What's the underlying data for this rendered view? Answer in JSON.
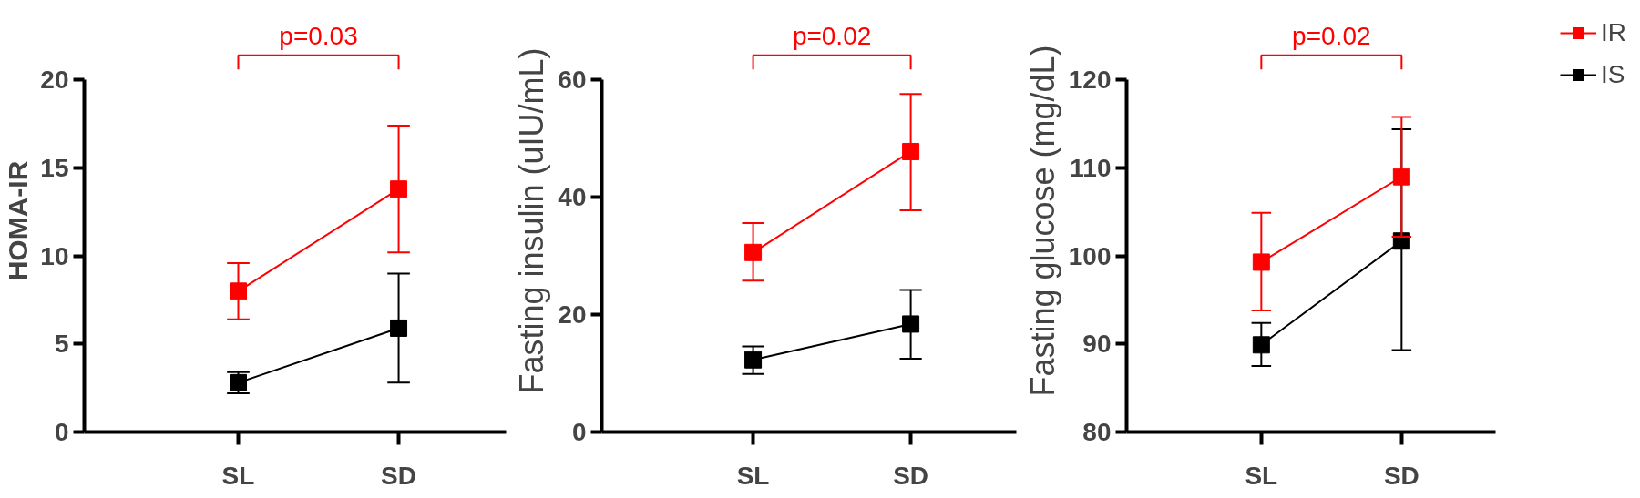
{
  "chart_data": [
    {
      "type": "line",
      "ylabel": "HOMA-IR",
      "categories": [
        "SL",
        "SD"
      ],
      "ylim": [
        0,
        20
      ],
      "yticks": [
        0,
        5,
        10,
        15,
        20
      ],
      "marker": "square",
      "legend": false,
      "grid": false,
      "annotations": [
        "p=0.03"
      ],
      "series": [
        {
          "color": "#ff0000",
          "values": [
            8.0,
            13.8
          ],
          "errors": [
            [
              6.4,
              9.6
            ],
            [
              10.2,
              17.4
            ]
          ]
        },
        {
          "color": "#000000",
          "values": [
            2.8,
            5.9
          ],
          "errors": [
            [
              2.2,
              3.4
            ],
            [
              2.8,
              9.0
            ]
          ]
        }
      ]
    },
    {
      "type": "line",
      "ylabel": "Fasting insulin (uIU/mL)",
      "categories": [
        "SL",
        "SD"
      ],
      "ylim": [
        0,
        60
      ],
      "yticks": [
        0,
        20,
        40,
        60
      ],
      "marker": "square",
      "legend": false,
      "grid": false,
      "annotations": [
        "p=0.02"
      ],
      "series": [
        {
          "color": "#ff0000",
          "values": [
            30.6,
            47.8
          ],
          "errors": [
            [
              25.8,
              35.6
            ],
            [
              37.8,
              57.6
            ]
          ]
        },
        {
          "color": "#000000",
          "values": [
            12.3,
            18.4
          ],
          "errors": [
            [
              9.9,
              14.6
            ],
            [
              12.5,
              24.2
            ]
          ]
        }
      ]
    },
    {
      "type": "line",
      "ylabel": "Fasting glucose (mg/dL)",
      "categories": [
        "SL",
        "SD"
      ],
      "ylim": [
        80,
        120
      ],
      "yticks": [
        80,
        90,
        100,
        110,
        120
      ],
      "marker": "square",
      "legend": "top right",
      "grid": false,
      "annotations": [
        "p=0.02"
      ],
      "series": [
        {
          "name": "IR",
          "color": "#ff0000",
          "values": [
            99.3,
            109.0
          ],
          "errors": [
            [
              93.8,
              104.9
            ],
            [
              102.2,
              115.8
            ]
          ]
        },
        {
          "name": "IS",
          "color": "#000000",
          "values": [
            89.9,
            101.7
          ],
          "errors": [
            [
              87.5,
              92.4
            ],
            [
              89.3,
              114.4
            ]
          ]
        }
      ]
    }
  ]
}
